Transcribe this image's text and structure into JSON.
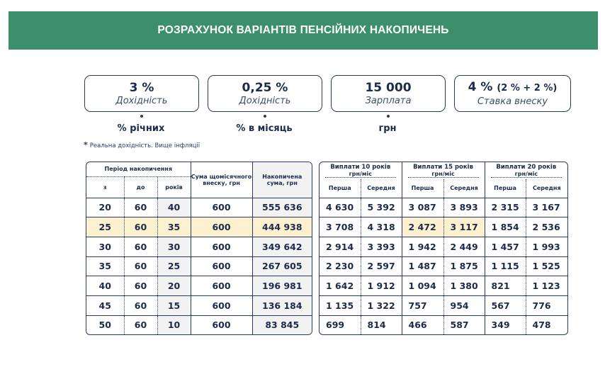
{
  "header": {
    "title": "РОЗРАХУНОК ВАРІАНТІВ ПЕНСІЙНИХ НАКОПИЧЕНЬ"
  },
  "boxes": [
    {
      "value": "3 %",
      "label": "Дохідність",
      "unit": "% річних"
    },
    {
      "value": "0,25 %",
      "label": "Дохідність",
      "unit": "% в місяць"
    },
    {
      "value": "15 000",
      "label": "Зарплата",
      "unit": "грн"
    },
    {
      "value": "4 %",
      "value_extra": "(2 % + 2 %)",
      "label": "Ставка внеску",
      "unit": ""
    }
  ],
  "note": {
    "star": "*",
    "text": "Реальна дохідність. Вище інфляції"
  },
  "left_table": {
    "period_header": "Період накопичення",
    "col_from": "з",
    "col_to": "до",
    "col_years": "років",
    "col_monthly": "Сума щомісячного внеску, грн",
    "col_accum": "Накопичена сума, грн",
    "rows": [
      [
        "20",
        "60",
        "40",
        "600",
        "555 636"
      ],
      [
        "25",
        "60",
        "35",
        "600",
        "444 938"
      ],
      [
        "30",
        "60",
        "30",
        "600",
        "349 642"
      ],
      [
        "35",
        "60",
        "25",
        "600",
        "267 605"
      ],
      [
        "40",
        "60",
        "20",
        "600",
        "196 981"
      ],
      [
        "45",
        "60",
        "15",
        "600",
        "136 184"
      ],
      [
        "50",
        "60",
        "10",
        "600",
        "83 845"
      ]
    ],
    "highlight_row": 1
  },
  "right_table": {
    "groups": [
      {
        "title": "Виплати 10 років",
        "unit": "грн/міс"
      },
      {
        "title": "Виплати 15 років",
        "unit": "грн/міс"
      },
      {
        "title": "Виплати 20 років",
        "unit": "грн/міс"
      }
    ],
    "first": "Перша",
    "avg": "Середня",
    "rows": [
      [
        "4 630",
        "5 392",
        "3 087",
        "3 893",
        "2 315",
        "3 167"
      ],
      [
        "3 708",
        "4 318",
        "2 472",
        "3 117",
        "1 854",
        "2 536"
      ],
      [
        "2 914",
        "3 393",
        "1 942",
        "2 449",
        "1 457",
        "1 993"
      ],
      [
        "2 230",
        "2 597",
        "1 487",
        "1 875",
        "1 115",
        "1 525"
      ],
      [
        "1 642",
        "1 912",
        "1 094",
        "1 380",
        "821",
        "1 123"
      ],
      [
        "1 135",
        "1 322",
        "757",
        "954",
        "567",
        "776"
      ],
      [
        "699",
        "814",
        "466",
        "587",
        "349",
        "478"
      ]
    ],
    "highlight_cells": [
      [
        1,
        2
      ],
      [
        1,
        3
      ]
    ]
  },
  "colors": {
    "banner": "#3b8f6a",
    "border": "#2b3a67",
    "highlight": "#fdf1cf",
    "shade": "#f2f2f2"
  }
}
